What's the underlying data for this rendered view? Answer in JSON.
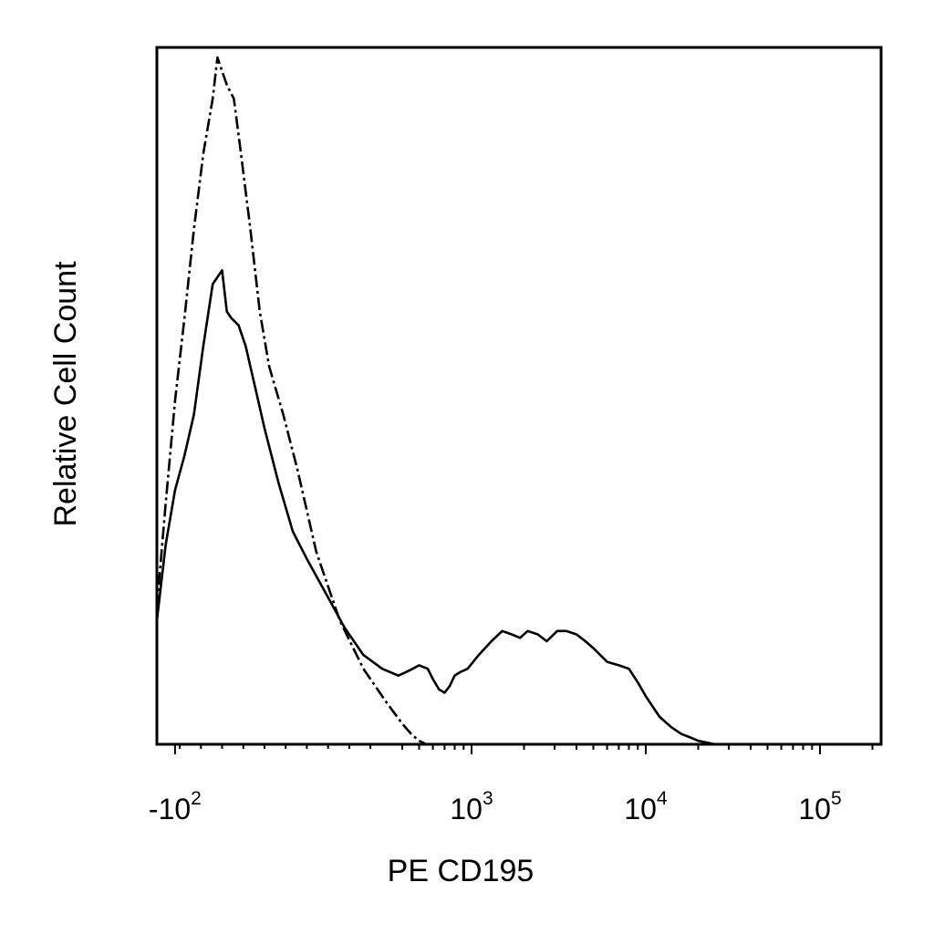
{
  "chart_data": {
    "type": "line",
    "title": "",
    "xlabel": "PE CD195",
    "ylabel": "Relative Cell Count",
    "x_scale": "biexponential",
    "x_ticks": [
      {
        "value": -100,
        "base": "-10",
        "exp": "2"
      },
      {
        "value": 1000,
        "base": "10",
        "exp": "3"
      },
      {
        "value": 10000,
        "base": "10",
        "exp": "4"
      },
      {
        "value": 100000,
        "base": "10",
        "exp": "5"
      }
    ],
    "xlim": [
      -400,
      250000
    ],
    "ylim": [
      0,
      100
    ],
    "grid": false,
    "legend": "none",
    "series": [
      {
        "style": "dash-dot",
        "color": "#000000",
        "points": [
          [
            -400,
            0
          ],
          [
            -300,
            1
          ],
          [
            -250,
            3
          ],
          [
            -200,
            8
          ],
          [
            -150,
            20
          ],
          [
            -120,
            35
          ],
          [
            -100,
            50
          ],
          [
            -80,
            62
          ],
          [
            -60,
            75
          ],
          [
            -40,
            86
          ],
          [
            -20,
            94
          ],
          [
            -10,
            100
          ],
          [
            0,
            98
          ],
          [
            10,
            96
          ],
          [
            25,
            94
          ],
          [
            40,
            86
          ],
          [
            60,
            75
          ],
          [
            80,
            63
          ],
          [
            100,
            55
          ],
          [
            130,
            48
          ],
          [
            160,
            40
          ],
          [
            200,
            28
          ],
          [
            250,
            18
          ],
          [
            300,
            11
          ],
          [
            350,
            6
          ],
          [
            400,
            3
          ],
          [
            450,
            1.5
          ],
          [
            500,
            0.5
          ],
          [
            550,
            0
          ],
          [
            2000,
            0
          ],
          [
            250000,
            0
          ]
        ]
      },
      {
        "style": "solid",
        "color": "#000000",
        "points": [
          [
            -400,
            0
          ],
          [
            -300,
            1
          ],
          [
            -250,
            3
          ],
          [
            -200,
            7
          ],
          [
            -150,
            18
          ],
          [
            -120,
            29
          ],
          [
            -100,
            37
          ],
          [
            -80,
            42
          ],
          [
            -60,
            48
          ],
          [
            -40,
            58
          ],
          [
            -20,
            67
          ],
          [
            0,
            69
          ],
          [
            10,
            63
          ],
          [
            20,
            62
          ],
          [
            35,
            61
          ],
          [
            50,
            58
          ],
          [
            70,
            52
          ],
          [
            90,
            46
          ],
          [
            120,
            38
          ],
          [
            150,
            31
          ],
          [
            180,
            27
          ],
          [
            220,
            22
          ],
          [
            260,
            17
          ],
          [
            300,
            13
          ],
          [
            340,
            11
          ],
          [
            380,
            10
          ],
          [
            420,
            10.5
          ],
          [
            460,
            11
          ],
          [
            500,
            11.5
          ],
          [
            560,
            11
          ],
          [
            600,
            9.5
          ],
          [
            650,
            8
          ],
          [
            700,
            7.5
          ],
          [
            750,
            8.5
          ],
          [
            800,
            10
          ],
          [
            860,
            10.5
          ],
          [
            950,
            11
          ],
          [
            1100,
            13
          ],
          [
            1300,
            15
          ],
          [
            1500,
            16.5
          ],
          [
            1700,
            16
          ],
          [
            1900,
            15.5
          ],
          [
            2100,
            16.5
          ],
          [
            2400,
            16
          ],
          [
            2700,
            15
          ],
          [
            3100,
            16.5
          ],
          [
            3500,
            16.5
          ],
          [
            4000,
            16
          ],
          [
            4500,
            15
          ],
          [
            5000,
            14
          ],
          [
            6000,
            12
          ],
          [
            7000,
            11.5
          ],
          [
            8000,
            11
          ],
          [
            9000,
            9
          ],
          [
            10000,
            7
          ],
          [
            12000,
            4
          ],
          [
            14000,
            2.5
          ],
          [
            16000,
            1.5
          ],
          [
            18000,
            1
          ],
          [
            20000,
            0.5
          ],
          [
            25000,
            0
          ],
          [
            250000,
            0
          ]
        ]
      }
    ]
  }
}
